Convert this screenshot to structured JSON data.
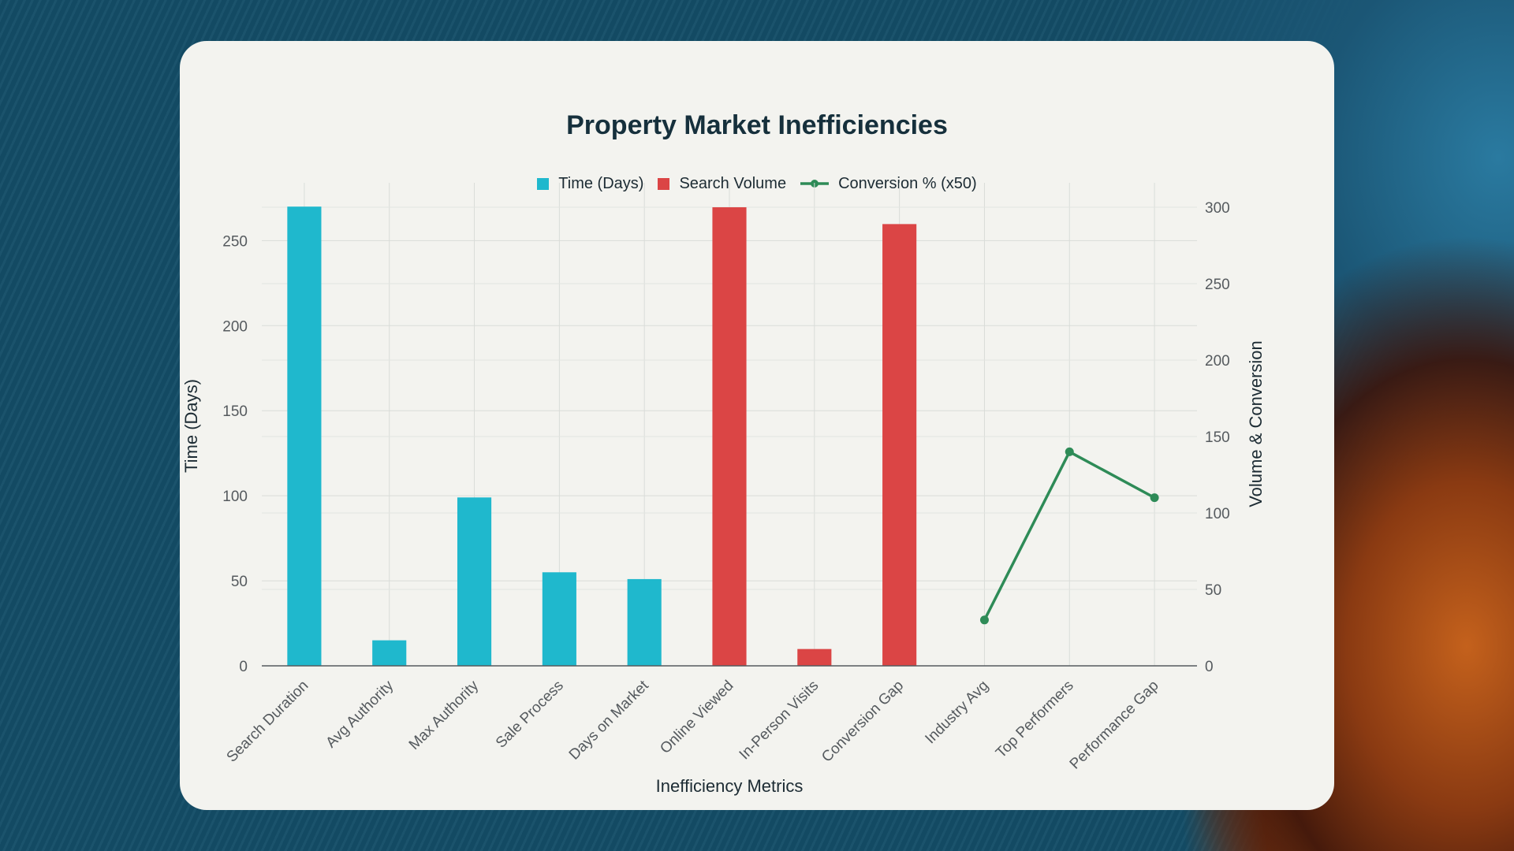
{
  "chart_data": {
    "type": "bar",
    "title": "Property Market Inefficiencies",
    "xlabel": "Inefficiency Metrics",
    "ylabel": "Time (Days)",
    "y2label": "Volume & Conversion",
    "categories": [
      "Search Duration",
      "Avg Authority",
      "Max Authority",
      "Sale Process",
      "Days on Market",
      "Online Viewed",
      "In-Person Visits",
      "Conversion Gap",
      "Industry Avg",
      "Top Performers",
      "Performance Gap"
    ],
    "ylim": [
      0,
      284
    ],
    "y2lim": [
      0,
      316
    ],
    "yticks": [
      0,
      50,
      100,
      150,
      200,
      250
    ],
    "y2ticks": [
      0,
      50,
      100,
      150,
      200,
      250,
      300
    ],
    "grid": true,
    "legend_position": "top-center",
    "series": [
      {
        "name": "Time (Days)",
        "kind": "bar",
        "axis": "left",
        "color": "#1fb8cd",
        "values": [
          270,
          15,
          99,
          55,
          51,
          null,
          null,
          null,
          null,
          null,
          null
        ]
      },
      {
        "name": "Search Volume",
        "kind": "bar",
        "axis": "right",
        "color": "#db4545",
        "values": [
          null,
          null,
          null,
          null,
          null,
          300,
          11,
          289,
          null,
          null,
          null
        ]
      },
      {
        "name": "Conversion % (x50)",
        "kind": "line",
        "axis": "right",
        "color": "#2e8b57",
        "values": [
          null,
          null,
          null,
          null,
          null,
          null,
          null,
          null,
          30,
          140,
          110
        ]
      }
    ]
  }
}
